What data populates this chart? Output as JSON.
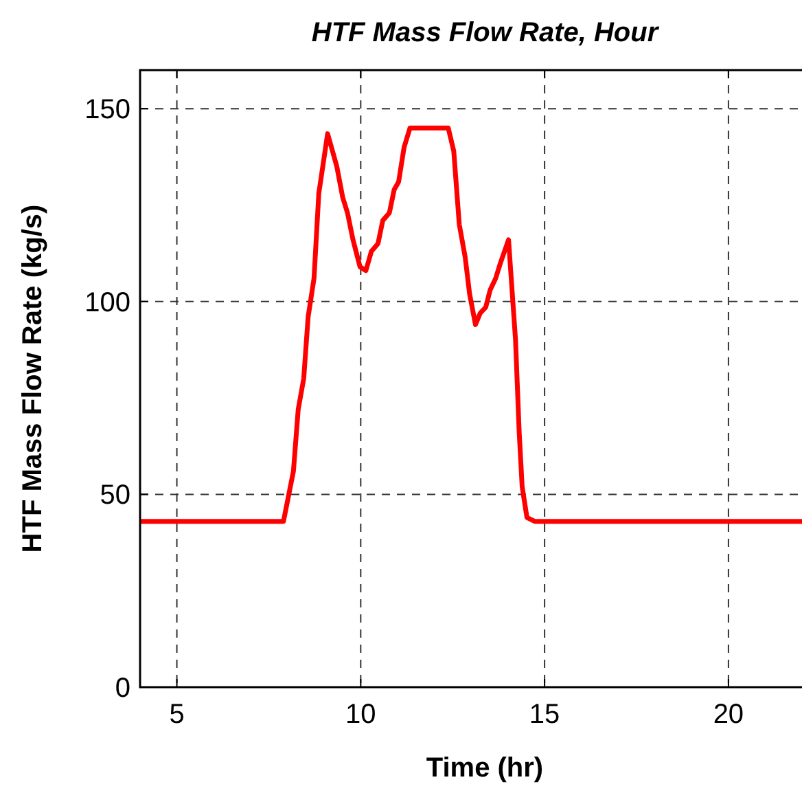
{
  "chart_data": {
    "type": "line",
    "title": "HTF Mass Flow Rate, Hour",
    "xlabel": "Time (hr)",
    "ylabel": "HTF Mass Flow Rate (kg/s)",
    "xlim": [
      4,
      22
    ],
    "xticks": [
      5,
      10,
      15,
      20
    ],
    "ylim": [
      0,
      160
    ],
    "yticks": [
      0,
      50,
      100,
      150
    ],
    "grid": true,
    "line_style": "solid",
    "marker": "none",
    "series": [
      {
        "color": "#ff0000",
        "x": [
          4,
          7.9,
          8.17,
          8.3,
          8.45,
          8.57,
          8.73,
          8.86,
          9.1,
          9.35,
          9.51,
          9.64,
          9.79,
          9.98,
          10.14,
          10.29,
          10.47,
          10.6,
          10.78,
          10.91,
          11.03,
          11.18,
          11.34,
          12.38,
          12.53,
          12.68,
          12.84,
          12.96,
          13.12,
          13.25,
          13.4,
          13.52,
          13.67,
          13.8,
          14.02,
          14.21,
          14.31,
          14.39,
          14.52,
          14.73,
          22
        ],
        "values": [
          43,
          43,
          56,
          72,
          80,
          96,
          106,
          128,
          143.5,
          135,
          127,
          123,
          116,
          109,
          108,
          113,
          115,
          121,
          123,
          129,
          131,
          140,
          145,
          145,
          139,
          120,
          111.5,
          102,
          94,
          97,
          98.5,
          103,
          106,
          110,
          116,
          90,
          66,
          52,
          44,
          43,
          43
        ]
      }
    ]
  }
}
